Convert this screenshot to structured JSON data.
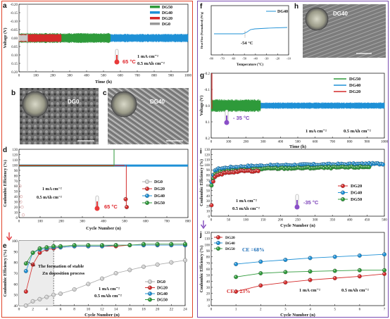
{
  "panels": {
    "a": {
      "letter": "a",
      "ylabel": "Voltage (V)",
      "xlabel": "Time (h)",
      "yticks": [
        "0.20",
        "0.15",
        "0.10",
        "0.05",
        "0.00",
        "-0.05",
        "-0.10",
        "-0.15",
        "-0.20"
      ],
      "xticks": [
        "0",
        "100",
        "200",
        "300",
        "400",
        "500",
        "600",
        "700",
        "800",
        "900",
        "1000"
      ],
      "legend": [
        "DG50",
        "DG40",
        "DG20",
        "DG0"
      ],
      "temp": "65 °C",
      "cond1": "1 mA cm⁻²",
      "cond2": "0.5 mAh cm⁻²"
    },
    "b": {
      "letter": "b",
      "label": "DG0"
    },
    "c": {
      "letter": "c",
      "label": "DG40"
    },
    "d": {
      "letter": "d",
      "ylabel": "Coulombic Efficiency (%)",
      "xlabel": "Cycle Number (n)",
      "yticks": [
        "0",
        "10",
        "20",
        "30",
        "40",
        "50",
        "60",
        "70",
        "80",
        "90",
        "100",
        "110",
        "120",
        "130"
      ],
      "xticks": [
        "0",
        "100",
        "200",
        "300",
        "400",
        "500",
        "600",
        "700",
        "800"
      ],
      "legend": [
        "DG0",
        "DG20",
        "DG40",
        "DG50"
      ],
      "cond1": "1 mA cm⁻²",
      "cond2": "0.5 mAh cm⁻²",
      "temp": "65 °C"
    },
    "e": {
      "letter": "e",
      "ylabel": "Coulombic Efficiency (%)",
      "xlabel": "Cycle Number (n)",
      "yticks": [
        "40",
        "50",
        "60",
        "70",
        "80",
        "90",
        "100"
      ],
      "xticks": [
        "0",
        "2",
        "4",
        "6",
        "8",
        "10",
        "12",
        "14",
        "16",
        "18",
        "20",
        "22",
        "24"
      ],
      "legend": [
        "DG0",
        "DG20",
        "DG40",
        "DG50"
      ],
      "note1": "The formation of stable",
      "note2": "Zn deposition process",
      "cond1": "1 mA cm⁻²",
      "cond2": "0.5 mAh cm⁻²"
    },
    "f": {
      "letter": "f",
      "ylabel": "Heat Flow (Normalized) (W/g)",
      "xlabel": "Temperature (°C)",
      "xticks": [
        "-80",
        "-70",
        "-60",
        "-50",
        "-40",
        "-30",
        "-20",
        "-10"
      ],
      "legend": "DG40",
      "annotation": "-54 °C"
    },
    "h": {
      "letter": "h",
      "label": "DG40"
    },
    "g": {
      "letter": "g",
      "ylabel": "Voltage (V)",
      "xlabel": "Time (h)",
      "yticks": [
        "0.2",
        "0.1",
        "0.0",
        "-0.1",
        "-0.2"
      ],
      "xticks": [
        "0",
        "100",
        "200",
        "300",
        "400",
        "500",
        "600",
        "700",
        "800",
        "900",
        "1000"
      ],
      "legend": [
        "DG50",
        "DG40",
        "DG20"
      ],
      "temp": "- 35 °C",
      "cond1": "1 mA cm⁻²",
      "cond2": "0.5 mAh cm⁻²"
    },
    "i": {
      "letter": "i",
      "ylabel": "Coulombic Efficiency (%)",
      "xlabel": "Cycle Number (n)",
      "yticks": [
        "0",
        "10",
        "20",
        "30",
        "40",
        "50",
        "60",
        "70",
        "80",
        "90",
        "100",
        "110",
        "120",
        "130"
      ],
      "xticks": [
        "0",
        "50",
        "100",
        "150",
        "200",
        "250",
        "300",
        "350",
        "400",
        "450",
        "500"
      ],
      "legend": [
        "DG20",
        "DG40",
        "DG50"
      ],
      "cond1": "1 mA cm⁻²",
      "cond2": "0.5 mAh cm⁻²",
      "temp": "-35 °C"
    },
    "j": {
      "letter": "j",
      "ylabel": "Coulombic Efficiency (%)",
      "xlabel": "Cycle Number (n)",
      "yticks": [
        "0",
        "10",
        "20",
        "30",
        "40",
        "50",
        "60",
        "70",
        "80",
        "90",
        "100",
        "110",
        "120"
      ],
      "xticks": [
        "0",
        "1",
        "2",
        "3",
        "4",
        "5",
        "6",
        "7"
      ],
      "legend": [
        "DG20",
        "DG40",
        "DG50"
      ],
      "ce_high": "CE =68%",
      "ce_low": "CE = 23%",
      "cond1": "1 mA cm⁻²",
      "cond2": "0.5 mAh cm⁻²"
    }
  },
  "colors": {
    "DG0": "#b9b9b9",
    "DG20": "#d42a2a",
    "DG40": "#1e90d6",
    "DG50": "#2e9a3a"
  },
  "chart_data": [
    {
      "panel": "a",
      "type": "line",
      "ylim": [
        -0.2,
        0.2
      ],
      "xlim": [
        0,
        1000
      ],
      "series": [
        {
          "name": "DG50",
          "x_end": 540,
          "amplitude": 0.03
        },
        {
          "name": "DG40",
          "x_end": 1000,
          "amplitude": 0.025
        },
        {
          "name": "DG20",
          "x_end": 250,
          "amplitude": 0.025
        },
        {
          "name": "DG0",
          "x_end": 50,
          "amplitude": 0.02
        }
      ]
    },
    {
      "panel": "d",
      "type": "scatter",
      "ylim": [
        0,
        130
      ],
      "xlim": [
        0,
        800
      ],
      "series": [
        {
          "name": "DG0",
          "x": [
            1,
            5,
            10,
            20
          ],
          "y": [
            40,
            60,
            20,
            5
          ]
        },
        {
          "name": "DG20",
          "x": [
            1,
            100,
            200,
            300,
            400,
            500,
            510
          ],
          "y": [
            95,
            98,
            99,
            99,
            99,
            99,
            20
          ]
        },
        {
          "name": "DG40",
          "x": [
            1,
            100,
            200,
            300,
            400,
            500,
            600,
            700,
            800
          ],
          "y": [
            98,
            99,
            99,
            99,
            99,
            99,
            99,
            99,
            99
          ]
        },
        {
          "name": "DG50",
          "x": [
            1,
            100,
            200,
            300,
            400,
            450
          ],
          "y": [
            96,
            99,
            99,
            99,
            99,
            99
          ]
        }
      ]
    },
    {
      "panel": "e",
      "type": "line",
      "ylim": [
        40,
        100
      ],
      "xlim": [
        0,
        24
      ],
      "series": [
        {
          "name": "DG0",
          "x": [
            1,
            2,
            3,
            4,
            5,
            6,
            8,
            10,
            12,
            14,
            16,
            18,
            20,
            22,
            24
          ],
          "y": [
            40,
            44,
            46,
            48,
            50,
            51,
            55,
            60,
            65,
            70,
            73,
            76,
            78,
            80,
            82
          ]
        },
        {
          "name": "DG20",
          "x": [
            1,
            2,
            3,
            4,
            5,
            6,
            8,
            10,
            12,
            14,
            16,
            18,
            20,
            22,
            24
          ],
          "y": [
            53,
            78,
            89,
            92,
            93,
            94,
            95,
            95,
            95,
            95,
            96,
            96,
            96,
            96,
            96
          ]
        },
        {
          "name": "DG40",
          "x": [
            1,
            2,
            3,
            4,
            5,
            6,
            8,
            10,
            12,
            14,
            16,
            18,
            20,
            22,
            24
          ],
          "y": [
            72,
            89,
            92,
            93,
            94,
            94,
            95,
            95,
            95,
            96,
            96,
            96,
            96,
            96,
            96
          ]
        },
        {
          "name": "DG50",
          "x": [
            1,
            2,
            3,
            4,
            5,
            6,
            8,
            10,
            12,
            14,
            16,
            18,
            20,
            22,
            24
          ],
          "y": [
            79,
            89,
            93,
            94,
            95,
            95,
            96,
            96,
            96,
            96,
            96,
            97,
            97,
            97,
            97
          ]
        }
      ]
    },
    {
      "panel": "g",
      "type": "line",
      "ylim": [
        -0.2,
        0.2
      ],
      "xlim": [
        0,
        1000
      ],
      "series": [
        {
          "name": "DG50",
          "x_end": 285,
          "amplitude": 0.06
        },
        {
          "name": "DG40",
          "x_end": 1000,
          "amplitude": 0.02
        },
        {
          "name": "DG20",
          "x_end": 5,
          "amplitude": 0.05
        }
      ]
    },
    {
      "panel": "i",
      "type": "scatter",
      "ylim": [
        0,
        130
      ],
      "xlim": [
        0,
        500
      ],
      "series": [
        {
          "name": "DG20",
          "x": [
            1,
            5,
            10,
            20,
            40,
            60,
            80,
            100,
            120,
            140
          ],
          "y": [
            20,
            65,
            75,
            80,
            84,
            86,
            87,
            88,
            88,
            88
          ]
        },
        {
          "name": "DG40",
          "x": [
            1,
            10,
            30,
            60,
            100,
            150,
            200,
            300,
            400,
            500
          ],
          "y": [
            65,
            90,
            93,
            95,
            97,
            98,
            99,
            100,
            101,
            102
          ]
        },
        {
          "name": "DG50",
          "x": [
            1,
            10,
            30,
            60,
            100,
            150,
            200,
            300,
            400,
            460
          ],
          "y": [
            60,
            82,
            86,
            88,
            90,
            92,
            93,
            94,
            95,
            96
          ]
        }
      ]
    },
    {
      "panel": "j",
      "type": "line",
      "ylim": [
        0,
        120
      ],
      "xlim": [
        0,
        7
      ],
      "series": [
        {
          "name": "DG20",
          "x": [
            1,
            2,
            3,
            4,
            5,
            6,
            7
          ],
          "y": [
            23,
            33,
            38,
            42,
            45,
            48,
            52
          ]
        },
        {
          "name": "DG40",
          "x": [
            1,
            2,
            3,
            4,
            5,
            6,
            7
          ],
          "y": [
            68,
            72,
            75,
            78,
            80,
            82,
            84
          ]
        },
        {
          "name": "DG50",
          "x": [
            1,
            2,
            3,
            4,
            5,
            6,
            7
          ],
          "y": [
            47,
            53,
            55,
            56,
            57,
            58,
            58
          ]
        }
      ]
    }
  ]
}
